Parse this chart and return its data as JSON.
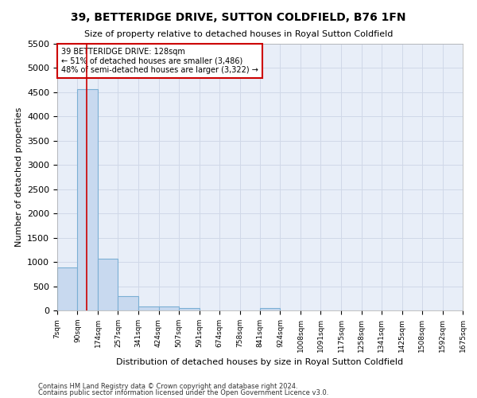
{
  "title": "39, BETTERIDGE DRIVE, SUTTON COLDFIELD, B76 1FN",
  "subtitle": "Size of property relative to detached houses in Royal Sutton Coldfield",
  "xlabel": "Distribution of detached houses by size in Royal Sutton Coldfield",
  "ylabel": "Number of detached properties",
  "footnote1": "Contains HM Land Registry data © Crown copyright and database right 2024.",
  "footnote2": "Contains public sector information licensed under the Open Government Licence v3.0.",
  "bar_edges": [
    7,
    90,
    174,
    257,
    341,
    424,
    507,
    591,
    674,
    758,
    841,
    924,
    1008,
    1091,
    1175,
    1258,
    1341,
    1425,
    1508,
    1592,
    1675
  ],
  "bar_values": [
    880,
    4560,
    1060,
    290,
    90,
    90,
    50,
    0,
    0,
    0,
    50,
    0,
    0,
    0,
    0,
    0,
    0,
    0,
    0,
    0
  ],
  "bar_color": "#c8d9ef",
  "bar_edge_color": "#7bafd4",
  "property_size": 128,
  "vline_color": "#cc0000",
  "ylim": [
    0,
    5500
  ],
  "yticks": [
    0,
    500,
    1000,
    1500,
    2000,
    2500,
    3000,
    3500,
    4000,
    4500,
    5000,
    5500
  ],
  "annotation_text1": "39 BETTERIDGE DRIVE: 128sqm",
  "annotation_text2": "← 51% of detached houses are smaller (3,486)",
  "annotation_text3": "48% of semi-detached houses are larger (3,322) →",
  "annotation_box_color": "#ffffff",
  "annotation_box_edge_color": "#cc0000",
  "bg_color": "#e8eef8",
  "grid_color": "#d0d8e8",
  "title_fontsize": 10,
  "subtitle_fontsize": 8.5
}
